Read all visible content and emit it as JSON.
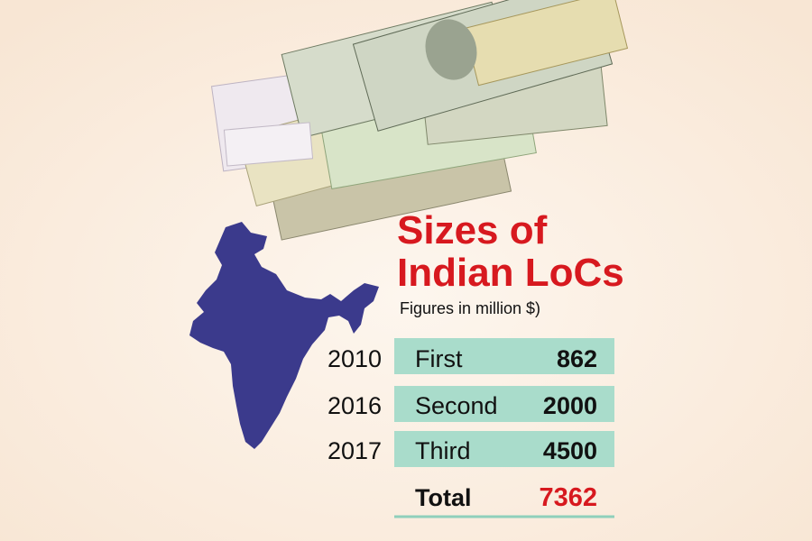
{
  "title_lines": [
    "Sizes of",
    "Indian LoCs"
  ],
  "subtitle": "Figures in million $)",
  "table": {
    "rows": [
      {
        "year": "2010",
        "name": "First",
        "value": "862"
      },
      {
        "year": "2016",
        "name": "Second",
        "value": "2000"
      },
      {
        "year": "2017",
        "name": "Third",
        "value": "4500"
      }
    ],
    "total": {
      "label": "Total",
      "value": "7362"
    }
  }
}
